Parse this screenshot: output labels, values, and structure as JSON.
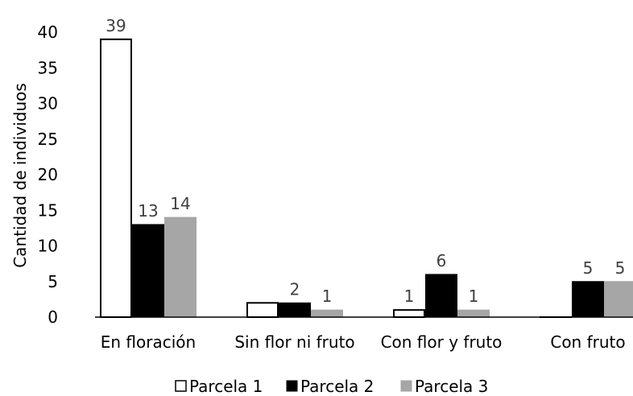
{
  "chart_data": {
    "type": "bar",
    "categories": [
      "En floración",
      "Sin flor ni fruto",
      "Con flor y fruto",
      "Con fruto"
    ],
    "series": [
      {
        "name": "Parcela 1",
        "values": [
          39,
          2,
          1,
          0
        ],
        "labels": [
          "39",
          "",
          "1",
          ""
        ],
        "color": "#ffffff",
        "stroke": "#000000"
      },
      {
        "name": "Parcela 2",
        "values": [
          13,
          2,
          6,
          5
        ],
        "labels": [
          "13",
          "2",
          "6",
          "5"
        ],
        "color": "#000000",
        "stroke": "#000000"
      },
      {
        "name": "Parcela 3",
        "values": [
          14,
          1,
          1,
          5
        ],
        "labels": [
          "14",
          "1",
          "1",
          "5"
        ],
        "color": "#a6a6a6",
        "stroke": "#a6a6a6"
      }
    ],
    "ylabel": "Cantidad de individuos",
    "xlabel": "",
    "ylim": [
      0,
      40
    ],
    "yticks": [
      0,
      5,
      10,
      15,
      20,
      25,
      30,
      35,
      40
    ],
    "grid": false,
    "legend": "bottom"
  }
}
